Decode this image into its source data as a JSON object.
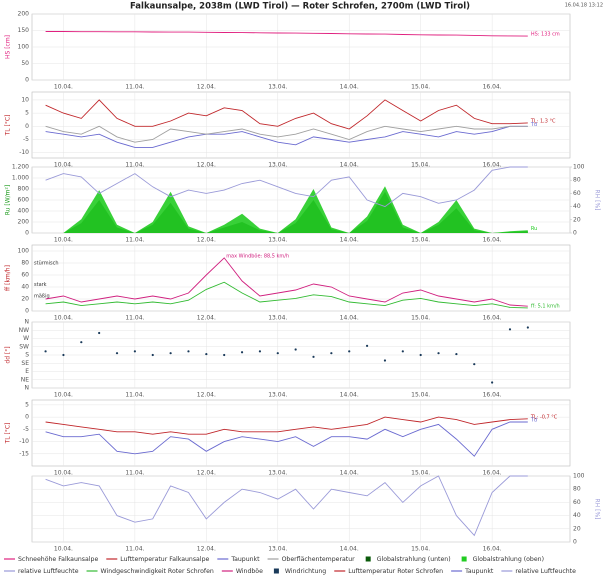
{
  "title": "Falkaunsalpe, 2038m (LWD Tirol) — Roter Schrofen, 2700m (LWD Tirol)",
  "timestamp": "16.04.18 13:12",
  "chart_data": [
    {
      "type": "line",
      "ylabel": "HS [cm]",
      "ylabel_color": "#e0207f",
      "grid": true,
      "xlim": [
        9.56,
        17.09
      ],
      "xticks": [
        {
          "value": 10,
          "label": "10.04."
        },
        {
          "value": 11,
          "label": "11.04."
        },
        {
          "value": 12,
          "label": "12.04."
        },
        {
          "value": 13,
          "label": "13.04."
        },
        {
          "value": 14,
          "label": "14.04."
        },
        {
          "value": 15,
          "label": "15.04."
        },
        {
          "value": 16,
          "label": "16.04."
        }
      ],
      "ylim": [
        0,
        200
      ],
      "yticks": [
        0,
        50,
        100,
        150,
        200
      ],
      "x": [
        9.75,
        10,
        10.25,
        10.5,
        10.75,
        11,
        11.25,
        11.5,
        11.75,
        12,
        12.25,
        12.5,
        12.75,
        13,
        13.25,
        13.5,
        13.75,
        14,
        14.25,
        14.5,
        14.75,
        15,
        15.25,
        15.5,
        15.75,
        16,
        16.25,
        16.5
      ],
      "series": [
        {
          "name": "Schneehöhe Falkaunsalpe",
          "color": "#e0207f",
          "end_label": "HS: 133 cm",
          "values": [
            147,
            147,
            146.5,
            146.5,
            146,
            146,
            145.5,
            145,
            145,
            144.5,
            144,
            143.5,
            143,
            142.5,
            142,
            141.5,
            141,
            140,
            139.5,
            139,
            138,
            137,
            136.5,
            136,
            135,
            134,
            133.5,
            133
          ]
        }
      ]
    },
    {
      "type": "line",
      "ylabel": "TL [°C]",
      "ylabel_color": "#c0262a",
      "grid": true,
      "xlim": [
        9.56,
        17.09
      ],
      "xticks": [
        {
          "value": 10,
          "label": "10.04."
        },
        {
          "value": 11,
          "label": "11.04."
        },
        {
          "value": 12,
          "label": "12.04."
        },
        {
          "value": 13,
          "label": "13.04."
        },
        {
          "value": 14,
          "label": "14.04."
        },
        {
          "value": 15,
          "label": "15.04."
        },
        {
          "value": 16,
          "label": "16.04."
        }
      ],
      "ylim": [
        -12,
        13
      ],
      "yticks": [
        -10,
        -5,
        0,
        5,
        10
      ],
      "x": [
        9.75,
        10,
        10.25,
        10.5,
        10.75,
        11,
        11.25,
        11.5,
        11.75,
        12,
        12.25,
        12.5,
        12.75,
        13,
        13.25,
        13.5,
        13.75,
        14,
        14.25,
        14.5,
        14.75,
        15,
        15.25,
        15.5,
        15.75,
        16,
        16.25,
        16.5
      ],
      "series": [
        {
          "name": "Lufttemperatur Falkaunsalpe",
          "color": "#c0262a",
          "end_label": "TL: 1,3 °C",
          "values": [
            8,
            5,
            3,
            10,
            3,
            0,
            0,
            2,
            5,
            4,
            7,
            6,
            1,
            0,
            3,
            5,
            1,
            -1,
            4,
            10,
            6,
            2,
            6,
            8,
            3,
            1,
            1,
            1.3
          ]
        },
        {
          "name": "Taupunkt",
          "color": "#6a6ad0",
          "end_label": "Td",
          "values": [
            -2,
            -3,
            -4,
            -3,
            -6,
            -8,
            -8,
            -6,
            -4,
            -3,
            -3,
            -2,
            -4,
            -6,
            -7,
            -4,
            -5,
            -6,
            -5,
            -4,
            -2,
            -3,
            -4,
            -2,
            -3,
            -2,
            0,
            0
          ]
        },
        {
          "name": "Oberflächentemperatur",
          "color": "#a0a0a0",
          "values": [
            0,
            -2,
            -3,
            0,
            -4,
            -6,
            -5,
            -1,
            -2,
            -3,
            -2,
            -1,
            -3,
            -4,
            -3,
            -1,
            -3,
            -5,
            -2,
            0,
            -1,
            -2,
            -1,
            0,
            -1,
            -1,
            0,
            0
          ]
        }
      ]
    },
    {
      "type": "area",
      "ylabel": "Ru [W/m²]",
      "ylabel_color": "#1a9a1a",
      "y2label": "RH [%]",
      "y2label_color": "#9a9ad8",
      "grid": true,
      "xlim": [
        9.56,
        17.09
      ],
      "xticks": [
        {
          "value": 10,
          "label": "10.04."
        },
        {
          "value": 11,
          "label": "11.04."
        },
        {
          "value": 12,
          "label": "12.04."
        },
        {
          "value": 13,
          "label": "13.04."
        },
        {
          "value": 14,
          "label": "14.04."
        },
        {
          "value": 15,
          "label": "15.04."
        },
        {
          "value": 16,
          "label": "16.04."
        }
      ],
      "ylim": [
        0,
        1200
      ],
      "yticks": [
        0,
        200,
        400,
        600,
        800,
        {
          "value": 1000,
          "label": "1.000"
        },
        {
          "value": 1200,
          "label": "1.200"
        }
      ],
      "y2lim": [
        0,
        100
      ],
      "y2ticks": [
        0,
        20,
        40,
        60,
        80,
        100
      ],
      "x": [
        9.75,
        10,
        10.25,
        10.5,
        10.75,
        11,
        11.25,
        11.5,
        11.75,
        12,
        12.25,
        12.5,
        12.75,
        13,
        13.25,
        13.5,
        13.75,
        14,
        14.25,
        14.5,
        14.75,
        15,
        15.25,
        15.5,
        15.75,
        16,
        16.25,
        16.5
      ],
      "series": [
        {
          "name": "Globalstrahlung (unten)",
          "color": "#0a5a0a",
          "values": [
            0,
            0,
            180,
            600,
            100,
            0,
            150,
            550,
            80,
            0,
            100,
            200,
            50,
            0,
            180,
            600,
            70,
            0,
            220,
            750,
            100,
            0,
            150,
            450,
            50,
            0,
            20,
            30
          ]
        },
        {
          "name": "Globalstrahlung (oben)",
          "color": "#22cc22",
          "end_label": "Ru",
          "values": [
            0,
            0,
            250,
            780,
            150,
            0,
            200,
            750,
            120,
            0,
            150,
            350,
            80,
            0,
            250,
            800,
            100,
            0,
            300,
            850,
            150,
            0,
            200,
            600,
            80,
            0,
            30,
            50
          ]
        },
        {
          "name": "relative Luftfeuchte",
          "color": "#9a9ad8",
          "type": "line",
          "axis": "y2",
          "values": [
            80,
            90,
            85,
            60,
            75,
            90,
            70,
            55,
            65,
            60,
            65,
            75,
            80,
            70,
            60,
            55,
            80,
            85,
            50,
            40,
            60,
            55,
            45,
            50,
            65,
            95,
            100,
            100
          ]
        }
      ]
    },
    {
      "type": "line",
      "ylabel": "ff [km/h]",
      "ylabel_color": "#c0262a",
      "grid": true,
      "xlim": [
        9.56,
        17.09
      ],
      "xticks": [
        {
          "value": 10,
          "label": "10.04."
        },
        {
          "value": 11,
          "label": "11.04."
        },
        {
          "value": 12,
          "label": "12.04."
        },
        {
          "value": 13,
          "label": "13.04."
        },
        {
          "value": 14,
          "label": "14.04."
        },
        {
          "value": 15,
          "label": "15.04."
        },
        {
          "value": 16,
          "label": "16.04."
        }
      ],
      "ylim": [
        0,
        110
      ],
      "yticks": [
        0,
        20,
        40,
        60,
        80,
        100
      ],
      "levels": [
        {
          "label": "stürmisch",
          "value": 75
        },
        {
          "label": "stark",
          "value": 39
        },
        {
          "label": "mäßig",
          "value": 20
        }
      ],
      "x": [
        9.75,
        10,
        10.25,
        10.5,
        10.75,
        11,
        11.25,
        11.5,
        11.75,
        12,
        12.25,
        12.5,
        12.75,
        13,
        13.25,
        13.5,
        13.75,
        14,
        14.25,
        14.5,
        14.75,
        15,
        15.25,
        15.5,
        15.75,
        16,
        16.25,
        16.5
      ],
      "series": [
        {
          "name": "Windgeschwindigkeit Roter Schrofen",
          "color": "#33bb33",
          "end_label": "ff: 5,1 km/h",
          "values": [
            12,
            15,
            9,
            12,
            15,
            12,
            15,
            12,
            18,
            36,
            48,
            30,
            15,
            18,
            21,
            27,
            24,
            15,
            12,
            9,
            18,
            21,
            15,
            12,
            9,
            12,
            6,
            5.1
          ]
        },
        {
          "name": "Windböe",
          "color": "#d0207f",
          "max_label": "max Windböe: 88,5 km/h",
          "values": [
            20,
            25,
            15,
            20,
            25,
            20,
            25,
            20,
            30,
            60,
            88.5,
            50,
            25,
            30,
            35,
            45,
            40,
            25,
            20,
            15,
            30,
            35,
            25,
            20,
            15,
            20,
            10,
            8
          ]
        }
      ]
    },
    {
      "type": "scatter",
      "ylabel": "dd [°]",
      "ylabel_color": "#c0262a",
      "grid": true,
      "xlim": [
        9.56,
        17.09
      ],
      "xticks": [
        {
          "value": 10,
          "label": "10.04."
        },
        {
          "value": 11,
          "label": "11.04."
        },
        {
          "value": 12,
          "label": "12.04."
        },
        {
          "value": 13,
          "label": "13.04."
        },
        {
          "value": 14,
          "label": "14.04."
        },
        {
          "value": 15,
          "label": "15.04."
        },
        {
          "value": 16,
          "label": "16.04."
        }
      ],
      "ylim": [
        0,
        360
      ],
      "yticks": [
        {
          "value": 0,
          "label": "N"
        },
        {
          "value": 45,
          "label": "NE"
        },
        {
          "value": 90,
          "label": "E"
        },
        {
          "value": 135,
          "label": "SE"
        },
        {
          "value": 180,
          "label": "S"
        },
        {
          "value": 225,
          "label": "SW"
        },
        {
          "value": 270,
          "label": "W"
        },
        {
          "value": 315,
          "label": "NW"
        },
        {
          "value": 360,
          "label": "N"
        }
      ],
      "x": [
        9.75,
        10,
        10.25,
        10.5,
        10.75,
        11,
        11.25,
        11.5,
        11.75,
        12,
        12.25,
        12.5,
        12.75,
        13,
        13.25,
        13.5,
        13.75,
        14,
        14.25,
        14.5,
        14.75,
        15,
        15.25,
        15.5,
        15.75,
        16,
        16.25,
        16.5
      ],
      "series": [
        {
          "name": "Windrichtung",
          "color": "#1a3a5a",
          "values": [
            200,
            180,
            250,
            300,
            190,
            200,
            180,
            190,
            200,
            185,
            180,
            195,
            200,
            190,
            210,
            170,
            190,
            200,
            230,
            150,
            200,
            180,
            190,
            185,
            130,
            30,
            320,
            330
          ]
        }
      ]
    },
    {
      "type": "line",
      "ylabel": "TL [°C]",
      "ylabel_color": "#c0262a",
      "grid": true,
      "xlim": [
        9.56,
        17.09
      ],
      "xticks": [
        {
          "value": 10,
          "label": "10.04."
        },
        {
          "value": 11,
          "label": "11.04."
        },
        {
          "value": 12,
          "label": "12.04."
        },
        {
          "value": 13,
          "label": "13.04."
        },
        {
          "value": 14,
          "label": "14.04."
        },
        {
          "value": 15,
          "label": "15.04."
        },
        {
          "value": 16,
          "label": "16.04."
        }
      ],
      "ylim": [
        -20,
        7
      ],
      "yticks": [
        -15,
        -10,
        -5,
        0,
        5
      ],
      "x": [
        9.75,
        10,
        10.25,
        10.5,
        10.75,
        11,
        11.25,
        11.5,
        11.75,
        12,
        12.25,
        12.5,
        12.75,
        13,
        13.25,
        13.5,
        13.75,
        14,
        14.25,
        14.5,
        14.75,
        15,
        15.25,
        15.5,
        15.75,
        16,
        16.25,
        16.5
      ],
      "series": [
        {
          "name": "Lufttemperatur Roter Schrofen",
          "color": "#c0262a",
          "end_label": "TL: -0,7 °C",
          "values": [
            -2,
            -3,
            -4,
            -5,
            -6,
            -6,
            -7,
            -6,
            -7,
            -7,
            -5,
            -6,
            -6,
            -6,
            -5,
            -4,
            -5,
            -4,
            -3,
            0,
            -1,
            -2,
            0,
            -1,
            -3,
            -2,
            -1,
            -0.7
          ]
        },
        {
          "name": "Taupunkt",
          "color": "#6a6ad0",
          "end_label": "Td",
          "values": [
            -6,
            -8,
            -8,
            -7,
            -14,
            -15,
            -14,
            -8,
            -9,
            -14,
            -10,
            -8,
            -9,
            -10,
            -8,
            -12,
            -8,
            -8,
            -9,
            -5,
            -8,
            -5,
            -3,
            -9,
            -16,
            -5,
            -2,
            -2
          ]
        }
      ]
    },
    {
      "type": "line",
      "y2label": "RH [%]",
      "y2label_color": "#9a9ad8",
      "grid": true,
      "xlim": [
        9.56,
        17.09
      ],
      "xticks": [
        {
          "value": 10,
          "label": "10.04."
        },
        {
          "value": 11,
          "label": "11.04."
        },
        {
          "value": 12,
          "label": "12.04."
        },
        {
          "value": 13,
          "label": "13.04."
        },
        {
          "value": 14,
          "label": "14.04."
        },
        {
          "value": 15,
          "label": "15.04."
        },
        {
          "value": 16,
          "label": "16.04."
        }
      ],
      "y2lim": [
        0,
        100
      ],
      "y2ticks": [
        0,
        20,
        40,
        60,
        80,
        100
      ],
      "x": [
        9.75,
        10,
        10.25,
        10.5,
        10.75,
        11,
        11.25,
        11.5,
        11.75,
        12,
        12.25,
        12.5,
        12.75,
        13,
        13.25,
        13.5,
        13.75,
        14,
        14.25,
        14.5,
        14.75,
        15,
        15.25,
        15.5,
        15.75,
        16,
        16.25,
        16.5
      ],
      "series": [
        {
          "name": "relative Luftfeuchte",
          "color": "#9a9ad8",
          "axis": "y2",
          "values": [
            95,
            85,
            90,
            85,
            40,
            30,
            35,
            85,
            75,
            35,
            60,
            80,
            75,
            65,
            80,
            50,
            80,
            75,
            70,
            90,
            60,
            85,
            100,
            40,
            10,
            75,
            100,
            100
          ]
        }
      ]
    }
  ]
}
